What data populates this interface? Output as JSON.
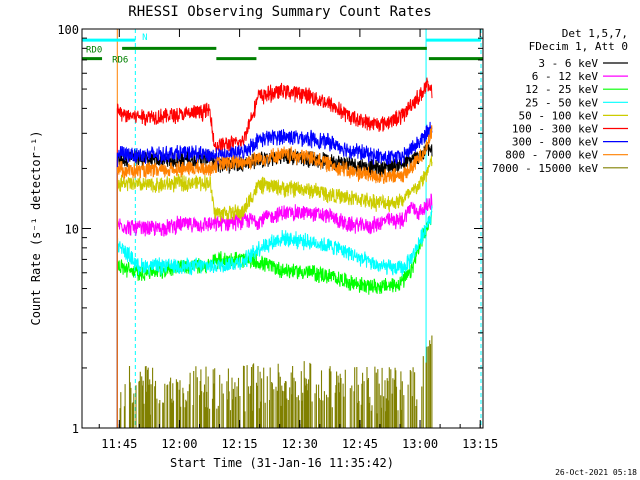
{
  "chart_data": {
    "type": "line",
    "title": "RHESSI Observing Summary Count Rates",
    "xlabel": "Start Time (31-Jan-16 11:35:42)",
    "ylabel": "Count Rate (s⁻¹ detector⁻¹)",
    "ylog": true,
    "ylim": [
      1,
      100
    ],
    "xlim_minutes": [
      0,
      100
    ],
    "grid": false,
    "legend_position": "right",
    "x_ticks": [
      {
        "label": "11:45",
        "minute": 9.3
      },
      {
        "label": "12:00",
        "minute": 24.3
      },
      {
        "label": "12:15",
        "minute": 39.3
      },
      {
        "label": "12:30",
        "minute": 54.3
      },
      {
        "label": "12:45",
        "minute": 69.3
      },
      {
        "label": "13:00",
        "minute": 84.3
      },
      {
        "label": "13:15",
        "minute": 99.3
      }
    ],
    "y_ticks": [
      {
        "label": "1",
        "value": 1
      },
      {
        "label": "10",
        "value": 10
      },
      {
        "label": "100",
        "value": 100
      }
    ],
    "legend_header": [
      "Det 1,5,7,",
      "FDecim 1, Att 0"
    ],
    "series": [
      {
        "name": "3 - 6 keV",
        "color": "#000000",
        "x": [
          8.8,
          12,
          20,
          32,
          33,
          38,
          44,
          52,
          60,
          68,
          74,
          80,
          82,
          84,
          85.5,
          86,
          87.3
        ],
        "y": [
          22,
          22.5,
          22,
          22.5,
          21,
          21,
          22,
          23,
          22,
          21,
          20,
          21,
          22,
          23,
          24,
          26,
          24
        ]
      },
      {
        "name": "6 - 12 keV",
        "color": "#ff00ff",
        "x": [
          8.8,
          14,
          20,
          24,
          32,
          33,
          40,
          44,
          50,
          56,
          62,
          66,
          72,
          76,
          80,
          82,
          84,
          86,
          87.3
        ],
        "y": [
          10.5,
          10,
          10,
          10.5,
          10.5,
          10.5,
          11,
          11,
          12,
          12,
          11.5,
          10.5,
          10.3,
          11,
          11,
          13,
          12,
          13,
          14
        ]
      },
      {
        "name": "12 - 25 keV",
        "color": "#00ff00",
        "x": [
          8.8,
          14,
          20,
          24,
          32,
          33,
          40,
          44,
          50,
          58,
          64,
          70,
          74,
          78,
          80,
          82,
          84,
          86,
          87.3
        ],
        "y": [
          6.5,
          6,
          6.2,
          6.5,
          6.5,
          7,
          7,
          6.8,
          6.2,
          6,
          5.6,
          5.2,
          5.1,
          5.2,
          5.5,
          6,
          8,
          10,
          12
        ]
      },
      {
        "name": "25 - 50 keV",
        "color": "#00ffff",
        "x": [
          8.8,
          14,
          20,
          24,
          32,
          33,
          40,
          44,
          50,
          58,
          64,
          70,
          74,
          78,
          80,
          82,
          84,
          86,
          87.3
        ],
        "y": [
          8.5,
          6.5,
          6.5,
          6.5,
          6.5,
          6.5,
          6.8,
          8,
          9,
          8.5,
          8,
          7,
          6.5,
          6.3,
          6.3,
          7,
          8.5,
          10.5,
          12
        ]
      },
      {
        "name": "50 - 100 keV",
        "color": "#cccc00",
        "x": [
          8.8,
          14,
          20,
          24,
          32,
          33,
          40,
          44,
          50,
          58,
          64,
          70,
          74,
          78,
          80,
          82,
          84,
          86,
          87.3
        ],
        "y": [
          17,
          16.5,
          16.5,
          17,
          17,
          12,
          12,
          16.5,
          16,
          15.5,
          14.5,
          14,
          13.5,
          13.5,
          14,
          15,
          16.5,
          19,
          22
        ]
      },
      {
        "name": "100 - 300 keV",
        "color": "#ff0000",
        "x": [
          8.8,
          10,
          16,
          24,
          32,
          33,
          40,
          44,
          50,
          56,
          62,
          66,
          72,
          76,
          80,
          82,
          84,
          86,
          87.3
        ],
        "y": [
          40,
          37,
          36.5,
          37,
          39,
          26,
          27,
          46,
          49,
          47,
          42,
          37,
          33.5,
          34,
          37,
          42,
          46,
          52,
          47
        ]
      },
      {
        "name": "300 - 800 keV",
        "color": "#0000ff",
        "x": [
          8.8,
          12,
          20,
          24,
          32,
          33,
          40,
          44,
          50,
          56,
          62,
          66,
          72,
          76,
          80,
          82,
          84,
          86,
          87.3
        ],
        "y": [
          24,
          23.5,
          23.5,
          24,
          23.5,
          23,
          24,
          28,
          29,
          28.5,
          27,
          25,
          23.5,
          22.5,
          23,
          25,
          27,
          30,
          33
        ]
      },
      {
        "name": "800 - 7000 keV",
        "color": "#ff8000",
        "x": [
          8.8,
          12,
          20,
          24,
          32,
          33,
          40,
          44,
          50,
          56,
          62,
          66,
          72,
          76,
          80,
          82,
          84,
          86,
          87.3
        ],
        "y": [
          20,
          19.5,
          19.5,
          20,
          20,
          21,
          21.5,
          22.5,
          23.5,
          23,
          21,
          19.5,
          18.5,
          18,
          18.5,
          20,
          22.5,
          26,
          31
        ]
      },
      {
        "name": "7000 - 15000 keV",
        "color": "#808000",
        "x": [
          9.5,
          14,
          20,
          26,
          32,
          38,
          46,
          52,
          58,
          64,
          70,
          76,
          80,
          84,
          86,
          87.3
        ],
        "y": [
          1.35,
          1.35,
          1.35,
          1.35,
          1.35,
          1.35,
          1.45,
          1.5,
          1.45,
          1.4,
          1.35,
          1.35,
          1.35,
          1.35,
          2.4,
          2.6
        ]
      }
    ],
    "annotations": {
      "labels": [
        {
          "text": "N",
          "minute": 15,
          "value": 92
        },
        {
          "text": "RD0",
          "minute": 1,
          "value": 80
        },
        {
          "text": "RD6",
          "minute": 7.5,
          "value": 71
        }
      ],
      "bars": [
        {
          "color": "#00ffff",
          "from": 0,
          "to": 13.3,
          "value": 88
        },
        {
          "color": "#00ffff",
          "from": 85.8,
          "to": 99.5,
          "value": 88
        },
        {
          "color": "#008000",
          "from": 10,
          "to": 33.5,
          "value": 80
        },
        {
          "color": "#008000",
          "from": 44,
          "to": 86,
          "value": 80
        },
        {
          "color": "#008000",
          "from": 0,
          "to": 5,
          "value": 71
        },
        {
          "color": "#008000",
          "from": 33.5,
          "to": 43.5,
          "value": 71
        },
        {
          "color": "#008000",
          "from": 86.5,
          "to": 100,
          "value": 71
        }
      ],
      "vlines": [
        {
          "color": "#00ffff",
          "minute": 13.3,
          "dashed": true
        },
        {
          "color": "#00ffff",
          "minute": 85.8,
          "dashed": false
        },
        {
          "color": "#00ffff",
          "minute": 99.5,
          "dashed": true
        },
        {
          "color": "#ff8000",
          "minute": 8.8,
          "dashed": false
        }
      ]
    }
  },
  "footer": {
    "timestamp": "26-Oct-2021 05:18"
  }
}
